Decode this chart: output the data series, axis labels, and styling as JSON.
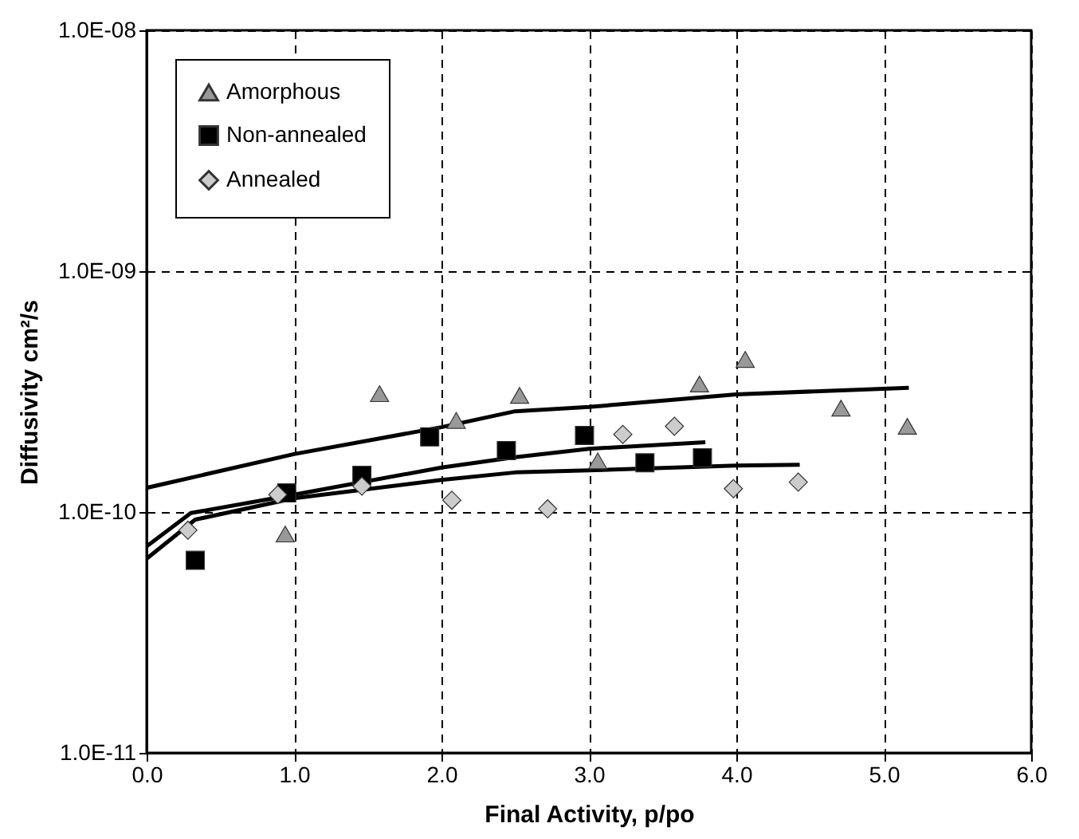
{
  "chart_data": {
    "type": "scatter",
    "xlabel": "Final Activity, p/po",
    "ylabel": "Diffusivity cm²/s",
    "log": "y",
    "grid": true,
    "legend": "top left",
    "xlim": [
      0,
      6
    ],
    "ylim": [
      1e-11,
      1e-08
    ],
    "xticks": [
      {
        "value": 0,
        "label": "0.0"
      },
      {
        "value": 1,
        "label": "1.0"
      },
      {
        "value": 2,
        "label": "2.0"
      },
      {
        "value": 3,
        "label": "3.0"
      },
      {
        "value": 4,
        "label": "4.0"
      },
      {
        "value": 5,
        "label": "5.0"
      },
      {
        "value": 6,
        "label": "6.0"
      }
    ],
    "yticks": [
      {
        "value": 1e-11,
        "label": "1.0E-11"
      },
      {
        "value": 1e-10,
        "label": "1.0E-10"
      },
      {
        "value": 1e-09,
        "label": "1.0E-09"
      },
      {
        "value": 1e-08,
        "label": "1.0E-08"
      }
    ],
    "series": [
      {
        "name": "Amorphous",
        "type": "scatter",
        "marker": "triangle",
        "color": "#999999",
        "x": [
          0.94,
          1.58,
          2.1,
          2.53,
          3.06,
          3.75,
          4.06,
          4.71,
          5.16
        ],
        "values": [
          8.1e-11,
          3.1e-10,
          2.4e-10,
          3.05e-10,
          1.63e-10,
          3.4e-10,
          4.3e-10,
          2.7e-10,
          2.27e-10
        ]
      },
      {
        "name": "Non-annealed",
        "type": "scatter",
        "marker": "square",
        "color": "#000000",
        "x": [
          0.33,
          0.95,
          1.46,
          1.92,
          2.44,
          2.97,
          3.38,
          3.77
        ],
        "values": [
          6.3e-11,
          1.2e-10,
          1.42e-10,
          2.05e-10,
          1.8e-10,
          2.08e-10,
          1.6e-10,
          1.68e-10
        ]
      },
      {
        "name": "Annealed",
        "type": "scatter",
        "marker": "diamond",
        "color": "#cccccc",
        "x": [
          0.28,
          0.89,
          1.46,
          2.07,
          2.72,
          3.23,
          3.58,
          3.98,
          4.42
        ],
        "values": [
          8.4e-11,
          1.18e-10,
          1.28e-10,
          1.12e-10,
          1.03e-10,
          2.1e-10,
          2.27e-10,
          1.25e-10,
          1.33e-10
        ]
      },
      {
        "type": "line",
        "marker": "none",
        "color": "#000000",
        "x": [
          0,
          1,
          2,
          2.5,
          3,
          4,
          5.17
        ],
        "values": [
          1.26e-10,
          1.74e-10,
          2.25e-10,
          2.62e-10,
          2.73e-10,
          3.08e-10,
          3.28e-10
        ]
      },
      {
        "type": "line",
        "marker": "none",
        "color": "#000000",
        "x": [
          0,
          0.3,
          1,
          2,
          2.5,
          3,
          3.79
        ],
        "values": [
          7.2e-11,
          9.9e-11,
          1.18e-10,
          1.53e-10,
          1.69e-10,
          1.83e-10,
          1.95e-10
        ]
      },
      {
        "type": "line",
        "marker": "none",
        "color": "#000000",
        "x": [
          0,
          0.33,
          1,
          2,
          2.5,
          3,
          4,
          4.43
        ],
        "values": [
          6.4e-11,
          9.3e-11,
          1.14e-10,
          1.36e-10,
          1.46e-10,
          1.49e-10,
          1.56e-10,
          1.57e-10
        ]
      }
    ]
  }
}
